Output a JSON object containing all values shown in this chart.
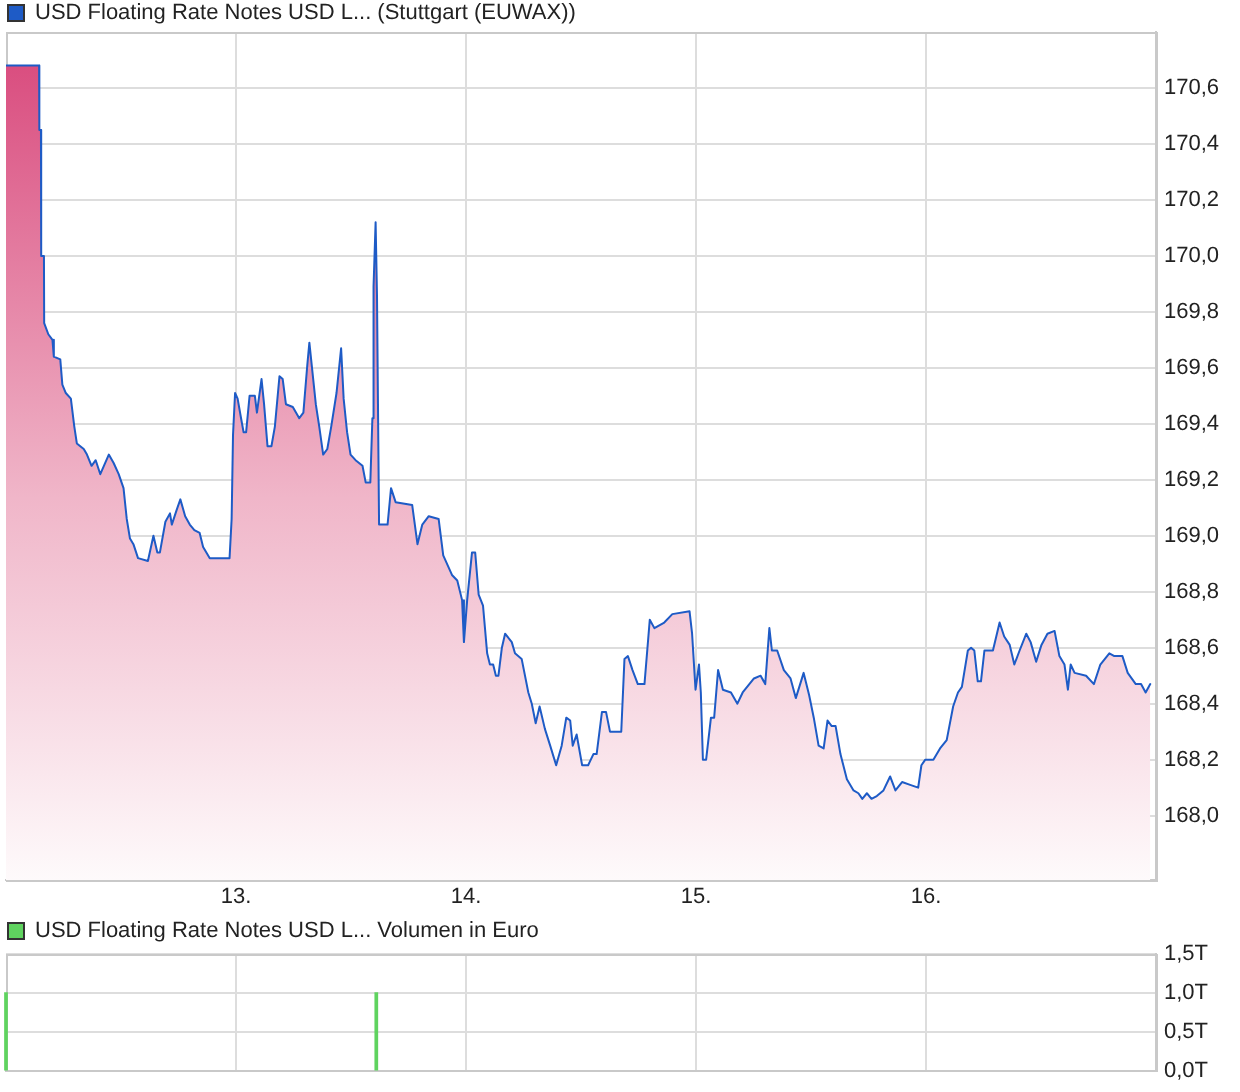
{
  "chart_data": [
    {
      "type": "area",
      "legend": "top left",
      "grid": true,
      "xlim": [
        12,
        17
      ],
      "xticks": [
        {
          "value": 13,
          "label": "13."
        },
        {
          "value": 14,
          "label": "14."
        },
        {
          "value": 15,
          "label": "15."
        },
        {
          "value": 16,
          "label": "16."
        }
      ],
      "ylim": [
        167.77,
        170.8
      ],
      "yticks": [
        {
          "value": 168,
          "label": "168,0"
        },
        {
          "value": 168.2,
          "label": "168,2"
        },
        {
          "value": 168.4,
          "label": "168,4"
        },
        {
          "value": 168.6,
          "label": "168,6"
        },
        {
          "value": 168.8,
          "label": "168,8"
        },
        {
          "value": 169,
          "label": "169,0"
        },
        {
          "value": 169.2,
          "label": "169,2"
        },
        {
          "value": 169.4,
          "label": "169,4"
        },
        {
          "value": 169.6,
          "label": "169,6"
        },
        {
          "value": 169.8,
          "label": "169,8"
        },
        {
          "value": 170,
          "label": "170,0"
        },
        {
          "value": 170.2,
          "label": "170,2"
        },
        {
          "value": 170.4,
          "label": "170,4"
        },
        {
          "value": 170.6,
          "label": "170,6"
        }
      ],
      "x": [
        12.0,
        12.144,
        12.145,
        12.152,
        12.153,
        12.165,
        12.166,
        12.184,
        12.202,
        12.208,
        12.236,
        12.245,
        12.26,
        12.282,
        12.297,
        12.308,
        12.338,
        12.352,
        12.372,
        12.39,
        12.41,
        12.447,
        12.468,
        12.49,
        12.511,
        12.525,
        12.539,
        12.554,
        12.574,
        12.617,
        12.641,
        12.658,
        12.669,
        12.693,
        12.713,
        12.721,
        12.741,
        12.758,
        12.779,
        12.799,
        12.819,
        12.842,
        12.857,
        12.886,
        12.972,
        12.981,
        12.987,
        12.996,
        13.007,
        13.022,
        13.033,
        13.044,
        13.059,
        13.082,
        13.091,
        13.111,
        13.122,
        13.137,
        13.154,
        13.169,
        13.189,
        13.203,
        13.217,
        13.247,
        13.275,
        13.293,
        13.31,
        13.319,
        13.333,
        13.347,
        13.362,
        13.379,
        13.397,
        13.414,
        13.437,
        13.457,
        13.468,
        13.483,
        13.498,
        13.52,
        13.55,
        13.564,
        13.584,
        13.593,
        13.598,
        13.607,
        13.613,
        13.622,
        13.659,
        13.674,
        13.694,
        13.766,
        13.789,
        13.81,
        13.838,
        13.881,
        13.901,
        13.939,
        13.962,
        13.983,
        13.991,
        14.005,
        14.026,
        14.04,
        14.055,
        14.074,
        14.092,
        14.104,
        14.118,
        14.13,
        14.141,
        14.156,
        14.17,
        14.199,
        14.213,
        14.242,
        14.271,
        14.286,
        14.303,
        14.32,
        14.343,
        14.366,
        14.392,
        14.416,
        14.436,
        14.453,
        14.464,
        14.481,
        14.505,
        14.531,
        14.554,
        14.568,
        14.591,
        14.609,
        14.626,
        14.675,
        14.689,
        14.704,
        14.724,
        14.747,
        14.776,
        14.799,
        14.819,
        14.862,
        14.897,
        14.972,
        14.983,
        14.998,
        15.013,
        15.021,
        15.03,
        15.044,
        15.065,
        15.079,
        15.096,
        15.117,
        15.152,
        15.18,
        15.203,
        15.252,
        15.281,
        15.301,
        15.319,
        15.33,
        15.353,
        15.382,
        15.411,
        15.434,
        15.468,
        15.492,
        15.512,
        15.533,
        15.555,
        15.572,
        15.59,
        15.607,
        15.628,
        15.656,
        15.685,
        15.706,
        15.723,
        15.743,
        15.763,
        15.786,
        15.815,
        15.844,
        15.867,
        15.896,
        15.931,
        15.966,
        15.98,
        15.997,
        16.032,
        16.061,
        16.09,
        16.118,
        16.139,
        16.156,
        16.182,
        16.196,
        16.21,
        16.225,
        16.239,
        16.254,
        16.291,
        16.32,
        16.34,
        16.364,
        16.384,
        16.407,
        16.436,
        16.455,
        16.479,
        16.502,
        16.528,
        16.559,
        16.58,
        16.602,
        16.617,
        16.629,
        16.646,
        16.696,
        16.73,
        16.758,
        16.797,
        16.819,
        16.854,
        16.877,
        16.912,
        16.935,
        16.955,
        16.975
      ],
      "series": [
        {
          "name": "USD Floating Rate Notes USD L... (Stuttgart (EUWAX))",
          "color": "#1e5bc6",
          "values": [
            170.68,
            170.68,
            170.45,
            170.45,
            170.0,
            170.0,
            169.76,
            169.72,
            169.7,
            169.64,
            169.63,
            169.54,
            169.51,
            169.49,
            169.39,
            169.33,
            169.31,
            169.29,
            169.25,
            169.27,
            169.22,
            169.29,
            169.26,
            169.22,
            169.17,
            169.06,
            168.99,
            168.97,
            168.92,
            168.91,
            169.0,
            168.94,
            168.94,
            169.05,
            169.08,
            169.04,
            169.09,
            169.13,
            169.07,
            169.04,
            169.02,
            169.01,
            168.96,
            168.92,
            168.92,
            169.06,
            169.36,
            169.51,
            169.49,
            169.42,
            169.37,
            169.37,
            169.5,
            169.5,
            169.44,
            169.56,
            169.47,
            169.32,
            169.32,
            169.39,
            169.57,
            169.56,
            169.47,
            169.46,
            169.42,
            169.44,
            169.61,
            169.69,
            169.58,
            169.47,
            169.39,
            169.29,
            169.31,
            169.39,
            169.51,
            169.67,
            169.49,
            169.37,
            169.29,
            169.27,
            169.25,
            169.19,
            169.19,
            169.42,
            169.89,
            170.12,
            169.86,
            169.04,
            169.04,
            169.17,
            169.12,
            169.11,
            168.97,
            169.04,
            169.07,
            169.06,
            168.93,
            168.86,
            168.84,
            168.77,
            168.62,
            168.77,
            168.94,
            168.94,
            168.79,
            168.75,
            168.58,
            168.54,
            168.54,
            168.5,
            168.5,
            168.6,
            168.65,
            168.62,
            168.58,
            168.56,
            168.44,
            168.4,
            168.33,
            168.39,
            168.31,
            168.25,
            168.18,
            168.25,
            168.35,
            168.34,
            168.25,
            168.29,
            168.18,
            168.18,
            168.22,
            168.22,
            168.37,
            168.37,
            168.3,
            168.3,
            168.56,
            168.57,
            168.52,
            168.47,
            168.47,
            168.7,
            168.67,
            168.69,
            168.72,
            168.73,
            168.65,
            168.45,
            168.54,
            168.44,
            168.2,
            168.2,
            168.35,
            168.35,
            168.52,
            168.45,
            168.44,
            168.4,
            168.44,
            168.49,
            168.5,
            168.47,
            168.67,
            168.59,
            168.59,
            168.52,
            168.49,
            168.42,
            168.51,
            168.43,
            168.35,
            168.25,
            168.24,
            168.34,
            168.32,
            168.32,
            168.22,
            168.13,
            168.09,
            168.08,
            168.06,
            168.08,
            168.06,
            168.07,
            168.09,
            168.14,
            168.09,
            168.12,
            168.11,
            168.1,
            168.18,
            168.2,
            168.2,
            168.24,
            168.27,
            168.39,
            168.44,
            168.46,
            168.59,
            168.6,
            168.59,
            168.48,
            168.48,
            168.59,
            168.59,
            168.69,
            168.64,
            168.61,
            168.54,
            168.59,
            168.65,
            168.62,
            168.55,
            168.61,
            168.65,
            168.66,
            168.57,
            168.54,
            168.45,
            168.54,
            168.51,
            168.5,
            168.47,
            168.54,
            168.58,
            168.57,
            168.57,
            168.51,
            168.47,
            168.47,
            168.44,
            168.47
          ]
        }
      ]
    },
    {
      "type": "bar",
      "legend": "top left",
      "grid": true,
      "tick_labels": "y",
      "xlim": [
        12,
        17
      ],
      "xticks": [
        13,
        14,
        15,
        16
      ],
      "ylim": [
        0,
        1.5
      ],
      "yticks": [
        {
          "value": 0,
          "label": "0,0T"
        },
        {
          "value": 0.5,
          "label": "0,5T"
        },
        {
          "value": 1,
          "label": "1,0T"
        },
        {
          "value": 1.5,
          "label": "1,5T"
        }
      ],
      "x": [
        12.0,
        13.61
      ],
      "series": [
        {
          "name": "USD Floating Rate Notes USD L... Volumen in Euro",
          "color": "#5fd35f",
          "values": [
            1.0,
            1.0
          ]
        }
      ]
    }
  ]
}
